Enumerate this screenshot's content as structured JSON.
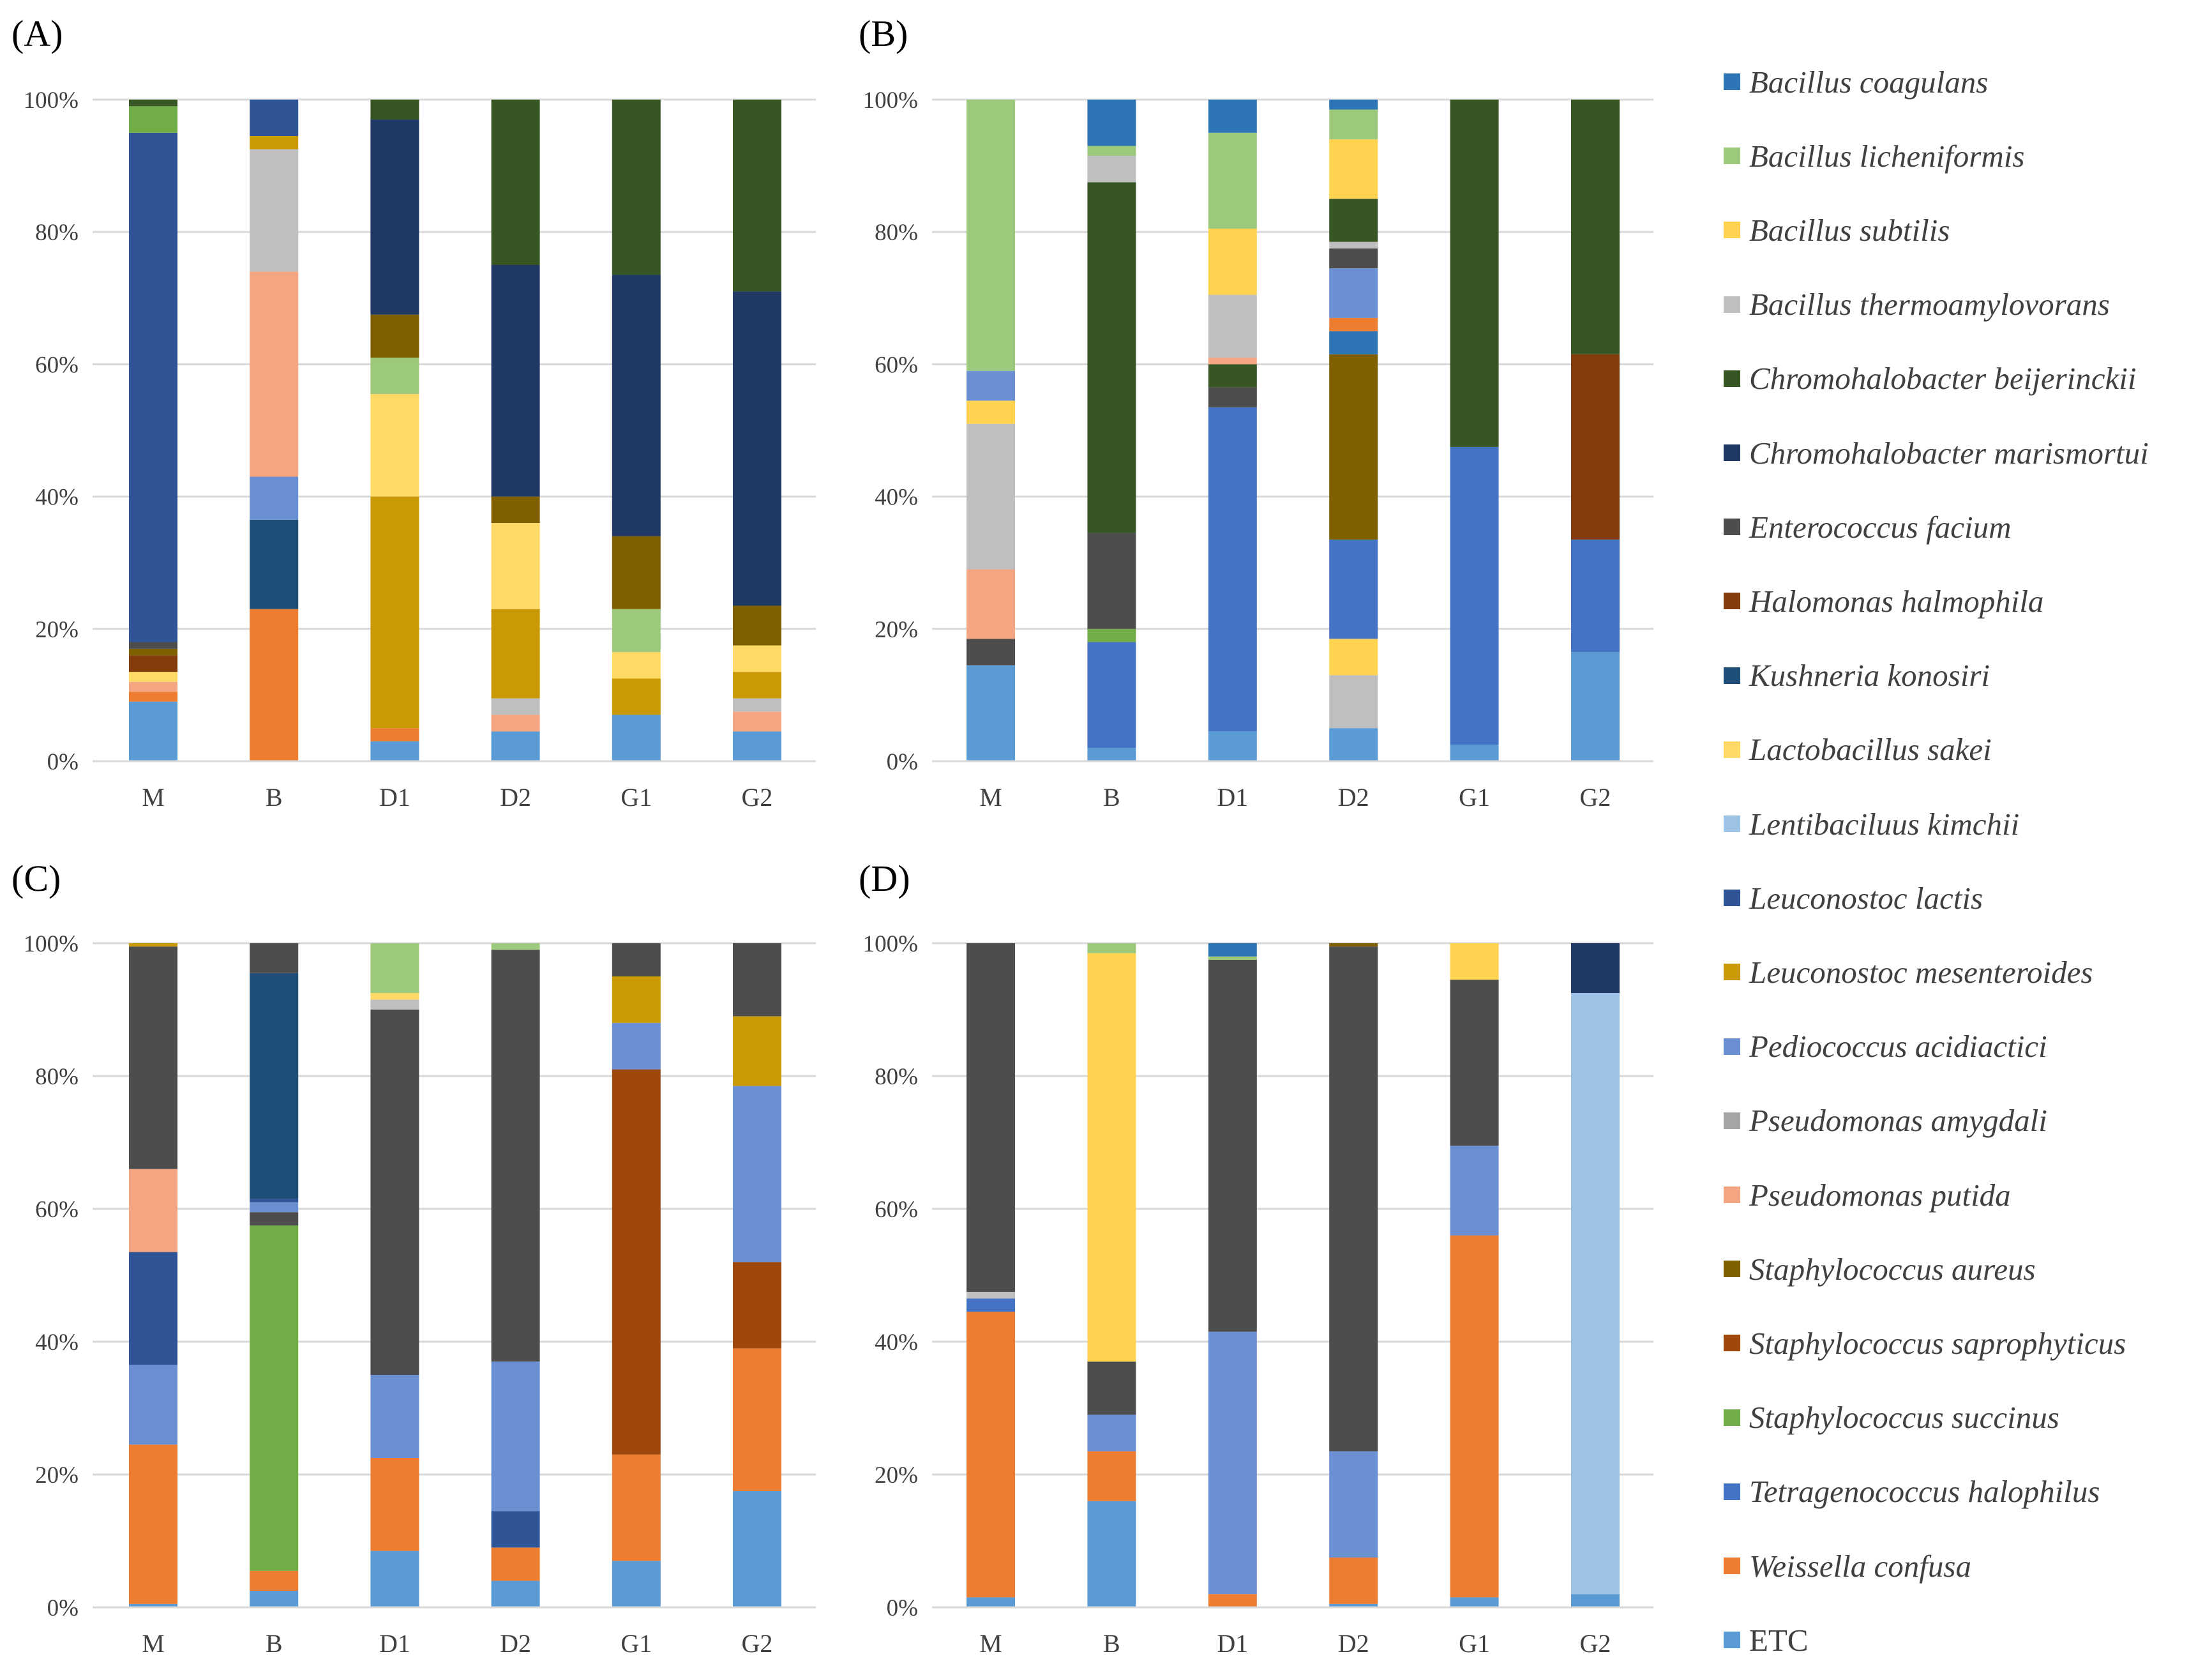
{
  "species": [
    {
      "name": "Bacillus coagulans",
      "color": "#2e75b6"
    },
    {
      "name": "Bacillus licheniformis",
      "color": "#9dc97c"
    },
    {
      "name": "Bacillus subtilis",
      "color": "#ffd24f"
    },
    {
      "name": "Bacillus thermoamylovorans",
      "color": "#bfbfbf"
    },
    {
      "name": "Chromohalobacter beijerinckii",
      "color": "#375623"
    },
    {
      "name": "Chromohalobacter marismortui",
      "color": "#1f3864"
    },
    {
      "name": "Enterococcus facium",
      "color": "#4d4d4d"
    },
    {
      "name": "Halomonas halmophila",
      "color": "#843c0c"
    },
    {
      "name": "Kushneria konosiri",
      "color": "#1f4e79"
    },
    {
      "name": "Lactobacillus sakei",
      "color": "#ffd966"
    },
    {
      "name": "Lentibaciluus kimchii",
      "color": "#9dc3e6"
    },
    {
      "name": "Leuconostoc lactis",
      "color": "#2f5597"
    },
    {
      "name": "Leuconostoc mesenteroides",
      "color": "#c99a06"
    },
    {
      "name": "Pediococcus acidiactici",
      "color": "#6a8fd3"
    },
    {
      "name": "Pseudomonas amygdali",
      "color": "#a6a6a6"
    },
    {
      "name": "Pseudomonas putida",
      "color": "#f4a582"
    },
    {
      "name": "Staphylococcus aureus",
      "color": "#7f6000"
    },
    {
      "name": "Staphylococcus saprophyticus",
      "color": "#9e480e"
    },
    {
      "name": "Staphylococcus succinus",
      "color": "#70ad47"
    },
    {
      "name": "Tetragenococcus halophilus",
      "color": "#4472c4"
    },
    {
      "name": "Weissella confusa",
      "color": "#ed7d31"
    },
    {
      "name": "ETC",
      "color": "#5b9bd5"
    }
  ],
  "chart_data": [
    {
      "type": "bar",
      "stacked": true,
      "panel_label": "(A)",
      "categories": [
        "M",
        "B",
        "D1",
        "D2",
        "G1",
        "G2"
      ],
      "y_ticks": [
        "0%",
        "20%",
        "40%",
        "60%",
        "80%",
        "100%"
      ],
      "ylim": [
        0,
        100
      ],
      "bars": [
        [
          {
            "s": "ETC",
            "v": 9
          },
          {
            "s": "Weissella confusa",
            "v": 1.5
          },
          {
            "s": "Pseudomonas putida",
            "v": 1.5
          },
          {
            "s": "Lactobacillus sakei",
            "v": 1.5
          },
          {
            "s": "Halomonas halmophila",
            "v": 2.5
          },
          {
            "s": "Staphylococcus aureus",
            "v": 1
          },
          {
            "s": "Enterococcus facium",
            "v": 1
          },
          {
            "s": "Leuconostoc lactis",
            "v": 77
          },
          {
            "s": "Staphylococcus succinus",
            "v": 4
          },
          {
            "s": "Chromohalobacter beijerinckii",
            "v": 1
          }
        ],
        [
          {
            "s": "Weissella confusa",
            "v": 23
          },
          {
            "s": "Kushneria konosiri",
            "v": 13.5
          },
          {
            "s": "Pediococcus acidiactici",
            "v": 6.5
          },
          {
            "s": "Pseudomonas putida",
            "v": 31
          },
          {
            "s": "Bacillus thermoamylovorans",
            "v": 18.5
          },
          {
            "s": "Leuconostoc mesenteroides",
            "v": 2
          },
          {
            "s": "Leuconostoc lactis",
            "v": 5.5
          }
        ],
        [
          {
            "s": "ETC",
            "v": 3
          },
          {
            "s": "Weissella confusa",
            "v": 2
          },
          {
            "s": "Leuconostoc mesenteroides",
            "v": 35
          },
          {
            "s": "Lactobacillus sakei",
            "v": 15.5
          },
          {
            "s": "Bacillus licheniformis",
            "v": 5.5
          },
          {
            "s": "Staphylococcus aureus",
            "v": 6.5
          },
          {
            "s": "Chromohalobacter marismortui",
            "v": 29.5
          },
          {
            "s": "Chromohalobacter beijerinckii",
            "v": 3
          }
        ],
        [
          {
            "s": "ETC",
            "v": 4.5
          },
          {
            "s": "Pseudomonas putida",
            "v": 2.5
          },
          {
            "s": "Bacillus thermoamylovorans",
            "v": 2.5
          },
          {
            "s": "Leuconostoc mesenteroides",
            "v": 13.5
          },
          {
            "s": "Lactobacillus sakei",
            "v": 13
          },
          {
            "s": "Staphylococcus aureus",
            "v": 4
          },
          {
            "s": "Chromohalobacter marismortui",
            "v": 35
          },
          {
            "s": "Chromohalobacter beijerinckii",
            "v": 25
          }
        ],
        [
          {
            "s": "ETC",
            "v": 7
          },
          {
            "s": "Leuconostoc mesenteroides",
            "v": 5.5
          },
          {
            "s": "Lactobacillus sakei",
            "v": 4
          },
          {
            "s": "Bacillus licheniformis",
            "v": 6.5
          },
          {
            "s": "Staphylococcus aureus",
            "v": 11
          },
          {
            "s": "Chromohalobacter marismortui",
            "v": 39.5
          },
          {
            "s": "Chromohalobacter beijerinckii",
            "v": 26.5
          }
        ],
        [
          {
            "s": "ETC",
            "v": 4.5
          },
          {
            "s": "Pseudomonas putida",
            "v": 3
          },
          {
            "s": "Bacillus thermoamylovorans",
            "v": 2
          },
          {
            "s": "Leuconostoc mesenteroides",
            "v": 4
          },
          {
            "s": "Lactobacillus sakei",
            "v": 4
          },
          {
            "s": "Staphylococcus aureus",
            "v": 6
          },
          {
            "s": "Chromohalobacter marismortui",
            "v": 47.5
          },
          {
            "s": "Chromohalobacter beijerinckii",
            "v": 29
          }
        ]
      ]
    },
    {
      "type": "bar",
      "stacked": true,
      "panel_label": "(B)",
      "categories": [
        "M",
        "B",
        "D1",
        "D2",
        "G1",
        "G2"
      ],
      "y_ticks": [
        "0%",
        "20%",
        "40%",
        "60%",
        "80%",
        "100%"
      ],
      "ylim": [
        0,
        100
      ],
      "bars": [
        [
          {
            "s": "ETC",
            "v": 14.5
          },
          {
            "s": "Enterococcus facium",
            "v": 4
          },
          {
            "s": "Pseudomonas putida",
            "v": 10.5
          },
          {
            "s": "Bacillus thermoamylovorans",
            "v": 22
          },
          {
            "s": "Bacillus subtilis",
            "v": 3.5
          },
          {
            "s": "Pediococcus acidiactici",
            "v": 4.5
          },
          {
            "s": "Bacillus licheniformis",
            "v": 41
          }
        ],
        [
          {
            "s": "ETC",
            "v": 2
          },
          {
            "s": "Tetragenococcus halophilus",
            "v": 16
          },
          {
            "s": "Staphylococcus succinus",
            "v": 2
          },
          {
            "s": "Enterococcus facium",
            "v": 14.5
          },
          {
            "s": "Chromohalobacter beijerinckii",
            "v": 53
          },
          {
            "s": "Bacillus thermoamylovorans",
            "v": 4
          },
          {
            "s": "Bacillus licheniformis",
            "v": 1.5
          },
          {
            "s": "Bacillus coagulans",
            "v": 7
          }
        ],
        [
          {
            "s": "ETC",
            "v": 4.5
          },
          {
            "s": "Tetragenococcus halophilus",
            "v": 49
          },
          {
            "s": "Enterococcus facium",
            "v": 3
          },
          {
            "s": "Chromohalobacter beijerinckii",
            "v": 3.5
          },
          {
            "s": "Pseudomonas putida",
            "v": 1
          },
          {
            "s": "Bacillus thermoamylovorans",
            "v": 9.5
          },
          {
            "s": "Bacillus subtilis",
            "v": 10
          },
          {
            "s": "Bacillus licheniformis",
            "v": 14.5
          },
          {
            "s": "Bacillus coagulans",
            "v": 5
          }
        ],
        [
          {
            "s": "ETC",
            "v": 5
          },
          {
            "s": "Bacillus thermoamylovorans",
            "v": 8
          },
          {
            "s": "Bacillus subtilis",
            "v": 5.5
          },
          {
            "s": "Tetragenococcus halophilus",
            "v": 15
          },
          {
            "s": "Staphylococcus aureus",
            "v": 28
          },
          {
            "s": "Bacillus coagulans",
            "v": 3.5
          },
          {
            "s": "Weissella confusa",
            "v": 2
          },
          {
            "s": "Pediococcus acidiactici",
            "v": 7.5
          },
          {
            "s": "Enterococcus facium",
            "v": 3
          },
          {
            "s": "Bacillus thermoamylovorans",
            "v": 1
          },
          {
            "s": "Chromohalobacter beijerinckii",
            "v": 6.5
          },
          {
            "s": "Bacillus subtilis",
            "v": 9
          },
          {
            "s": "Bacillus licheniformis",
            "v": 4.5
          },
          {
            "s": "Bacillus coagulans",
            "v": 1.5
          }
        ],
        [
          {
            "s": "ETC",
            "v": 2.5
          },
          {
            "s": "Tetragenococcus halophilus",
            "v": 45
          },
          {
            "s": "Chromohalobacter beijerinckii",
            "v": 52.5
          }
        ],
        [
          {
            "s": "ETC",
            "v": 16.5
          },
          {
            "s": "Tetragenococcus halophilus",
            "v": 17
          },
          {
            "s": "Halomonas halmophila",
            "v": 28
          },
          {
            "s": "Chromohalobacter beijerinckii",
            "v": 38.5
          }
        ]
      ]
    },
    {
      "type": "bar",
      "stacked": true,
      "panel_label": "(C)",
      "categories": [
        "M",
        "B",
        "D1",
        "D2",
        "G1",
        "G2"
      ],
      "y_ticks": [
        "0%",
        "20%",
        "40%",
        "60%",
        "80%",
        "100%"
      ],
      "ylim": [
        0,
        100
      ],
      "bars": [
        [
          {
            "s": "ETC",
            "v": 0.5
          },
          {
            "s": "Weissella confusa",
            "v": 24
          },
          {
            "s": "Pediococcus acidiactici",
            "v": 12
          },
          {
            "s": "Leuconostoc lactis",
            "v": 17
          },
          {
            "s": "Pseudomonas putida",
            "v": 12.5
          },
          {
            "s": "Enterococcus facium",
            "v": 33.5
          },
          {
            "s": "Leuconostoc mesenteroides",
            "v": 0.5
          }
        ],
        [
          {
            "s": "ETC",
            "v": 2.5
          },
          {
            "s": "Weissella confusa",
            "v": 3
          },
          {
            "s": "Staphylococcus succinus",
            "v": 52
          },
          {
            "s": "Enterococcus facium",
            "v": 2
          },
          {
            "s": "Pediococcus acidiactici",
            "v": 1.5
          },
          {
            "s": "Leuconostoc lactis",
            "v": 0.5
          },
          {
            "s": "Kushneria konosiri",
            "v": 34
          },
          {
            "s": "Enterococcus facium",
            "v": 4.5
          }
        ],
        [
          {
            "s": "ETC",
            "v": 8.5
          },
          {
            "s": "Weissella confusa",
            "v": 14
          },
          {
            "s": "Pediococcus acidiactici",
            "v": 12.5
          },
          {
            "s": "Enterococcus facium",
            "v": 55
          },
          {
            "s": "Bacillus thermoamylovorans",
            "v": 1.5
          },
          {
            "s": "Lactobacillus sakei",
            "v": 1
          },
          {
            "s": "Bacillus licheniformis",
            "v": 7.5
          }
        ],
        [
          {
            "s": "ETC",
            "v": 4
          },
          {
            "s": "Weissella confusa",
            "v": 5
          },
          {
            "s": "Leuconostoc lactis",
            "v": 5.5
          },
          {
            "s": "Pediococcus acidiactici",
            "v": 22.5
          },
          {
            "s": "Enterococcus facium",
            "v": 62
          },
          {
            "s": "Bacillus licheniformis",
            "v": 1
          }
        ],
        [
          {
            "s": "ETC",
            "v": 7
          },
          {
            "s": "Weissella confusa",
            "v": 16
          },
          {
            "s": "Staphylococcus saprophyticus",
            "v": 58
          },
          {
            "s": "Pediococcus acidiactici",
            "v": 7
          },
          {
            "s": "Leuconostoc mesenteroides",
            "v": 7
          },
          {
            "s": "Enterococcus facium",
            "v": 5
          }
        ],
        [
          {
            "s": "ETC",
            "v": 17.5
          },
          {
            "s": "Weissella confusa",
            "v": 21.5
          },
          {
            "s": "Staphylococcus saprophyticus",
            "v": 13
          },
          {
            "s": "Pediococcus acidiactici",
            "v": 26.5
          },
          {
            "s": "Leuconostoc mesenteroides",
            "v": 10.5
          },
          {
            "s": "Enterococcus facium",
            "v": 11
          }
        ]
      ]
    },
    {
      "type": "bar",
      "stacked": true,
      "panel_label": "(D)",
      "categories": [
        "M",
        "B",
        "D1",
        "D2",
        "G1",
        "G2"
      ],
      "y_ticks": [
        "0%",
        "20%",
        "40%",
        "60%",
        "80%",
        "100%"
      ],
      "ylim": [
        0,
        100
      ],
      "bars": [
        [
          {
            "s": "ETC",
            "v": 1.5
          },
          {
            "s": "Weissella confusa",
            "v": 43
          },
          {
            "s": "Tetragenococcus halophilus",
            "v": 2
          },
          {
            "s": "Bacillus thermoamylovorans",
            "v": 1
          },
          {
            "s": "Enterococcus facium",
            "v": 52.5
          }
        ],
        [
          {
            "s": "ETC",
            "v": 16
          },
          {
            "s": "Weissella confusa",
            "v": 7.5
          },
          {
            "s": "Pediococcus acidiactici",
            "v": 5.5
          },
          {
            "s": "Enterococcus facium",
            "v": 8
          },
          {
            "s": "Bacillus subtilis",
            "v": 61.5
          },
          {
            "s": "Bacillus licheniformis",
            "v": 1.5
          }
        ],
        [
          {
            "s": "Weissella confusa",
            "v": 2
          },
          {
            "s": "Pediococcus acidiactici",
            "v": 39.5
          },
          {
            "s": "Enterococcus facium",
            "v": 56
          },
          {
            "s": "Bacillus licheniformis",
            "v": 0.5
          },
          {
            "s": "Bacillus coagulans",
            "v": 2
          }
        ],
        [
          {
            "s": "ETC",
            "v": 0.5
          },
          {
            "s": "Weissella confusa",
            "v": 7
          },
          {
            "s": "Pediococcus acidiactici",
            "v": 16
          },
          {
            "s": "Enterococcus facium",
            "v": 76
          },
          {
            "s": "Staphylococcus aureus",
            "v": 0.5
          }
        ],
        [
          {
            "s": "ETC",
            "v": 1.5
          },
          {
            "s": "Weissella confusa",
            "v": 54.5
          },
          {
            "s": "Pediococcus acidiactici",
            "v": 13.5
          },
          {
            "s": "Enterococcus facium",
            "v": 25
          },
          {
            "s": "Bacillus subtilis",
            "v": 5.5
          }
        ],
        [
          {
            "s": "ETC",
            "v": 2
          },
          {
            "s": "Lentibaciluus kimchii",
            "v": 90.5
          },
          {
            "s": "Chromohalobacter marismortui",
            "v": 7.5
          }
        ]
      ]
    }
  ]
}
